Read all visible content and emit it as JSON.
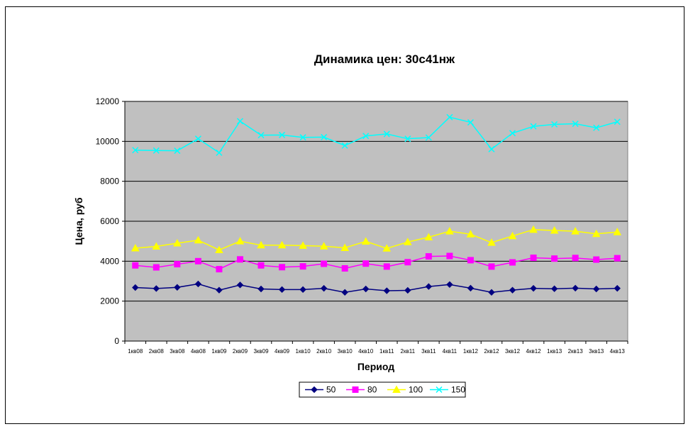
{
  "chart_data": {
    "type": "line",
    "title": "Динамика цен: 30с41нж",
    "xlabel": "Период",
    "ylabel": "Цена, руб",
    "ylim": [
      0,
      12000
    ],
    "yticks": [
      "0",
      "2000",
      "4000",
      "6000",
      "8000",
      "10000",
      "12000"
    ],
    "grid": true,
    "legend_position": "bottom",
    "plot_background": "#C0C0C0",
    "categories": [
      "1кв08",
      "2кв08",
      "3кв08",
      "4кв08",
      "1кв09",
      "2кв09",
      "3кв09",
      "4кв09",
      "1кв10",
      "2кв10",
      "3кв10",
      "4кв10",
      "1кв11",
      "2кв11",
      "3кв11",
      "4кв11",
      "1кв12",
      "2кв12",
      "3кв12",
      "4кв12",
      "1кв13",
      "2кв13",
      "3кв13",
      "4кв13"
    ],
    "series": [
      {
        "name": "50",
        "color": "#000080",
        "marker": "diamond",
        "values": [
          2680,
          2630,
          2690,
          2860,
          2550,
          2810,
          2610,
          2580,
          2580,
          2640,
          2440,
          2610,
          2520,
          2540,
          2730,
          2830,
          2650,
          2440,
          2550,
          2640,
          2620,
          2650,
          2610,
          2640
        ]
      },
      {
        "name": "80",
        "color": "#FF00FF",
        "marker": "square",
        "values": [
          3790,
          3690,
          3850,
          4000,
          3600,
          4090,
          3790,
          3700,
          3740,
          3870,
          3640,
          3880,
          3730,
          3950,
          4240,
          4260,
          4050,
          3730,
          3940,
          4170,
          4130,
          4160,
          4080,
          4150
        ]
      },
      {
        "name": "100",
        "color": "#FFFF00",
        "marker": "triangle",
        "values": [
          4650,
          4740,
          4900,
          5050,
          4560,
          5000,
          4800,
          4800,
          4780,
          4750,
          4670,
          4990,
          4640,
          4960,
          5200,
          5500,
          5350,
          4930,
          5260,
          5580,
          5540,
          5500,
          5370,
          5460
        ]
      },
      {
        "name": "150",
        "color": "#00FFFF",
        "marker": "x",
        "values": [
          9560,
          9540,
          9530,
          10130,
          9430,
          11010,
          10310,
          10320,
          10200,
          10210,
          9790,
          10270,
          10370,
          10130,
          10190,
          11210,
          10950,
          9610,
          10410,
          10750,
          10850,
          10880,
          10680,
          10980
        ]
      }
    ]
  }
}
